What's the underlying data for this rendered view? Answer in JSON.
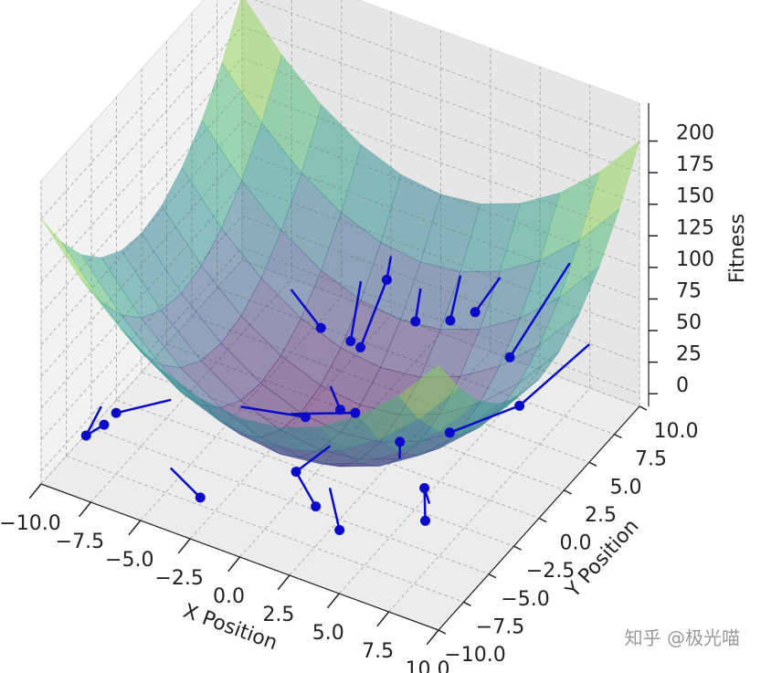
{
  "chart_data": {
    "type": "surface3d",
    "xlabel": "X Position",
    "ylabel": "Y Position",
    "zlabel": "Fitness",
    "xlim": [
      -10,
      10
    ],
    "ylim": [
      -10,
      10
    ],
    "zlim": [
      -10,
      230
    ],
    "xticks": [
      {
        "value": -10,
        "label": "−10.0"
      },
      {
        "value": -7.5,
        "label": "−7.5"
      },
      {
        "value": -5,
        "label": "−5.0"
      },
      {
        "value": -2.5,
        "label": "−2.5"
      },
      {
        "value": 0,
        "label": "0.0"
      },
      {
        "value": 2.5,
        "label": "2.5"
      },
      {
        "value": 5,
        "label": "5.0"
      },
      {
        "value": 7.5,
        "label": "7.5"
      },
      {
        "value": 10,
        "label": "10.0"
      }
    ],
    "yticks": [
      {
        "value": -10,
        "label": "−10.0"
      },
      {
        "value": -7.5,
        "label": "−7.5"
      },
      {
        "value": -5,
        "label": "−5.0"
      },
      {
        "value": -2.5,
        "label": "−2.5"
      },
      {
        "value": 0,
        "label": "0.0"
      },
      {
        "value": 2.5,
        "label": "2.5"
      },
      {
        "value": 5,
        "label": "5.0"
      },
      {
        "value": 7.5,
        "label": "7.5"
      },
      {
        "value": 10,
        "label": "10.0"
      }
    ],
    "zticks": [
      0,
      25,
      50,
      75,
      100,
      125,
      150,
      175,
      200
    ],
    "grid": true,
    "colormap": "viridis",
    "surface": {
      "x": [
        -10,
        -8,
        -6,
        -4,
        -2,
        0,
        2,
        4,
        6,
        8,
        10
      ],
      "y": [
        -10,
        -8,
        -6,
        -4,
        -2,
        0,
        2,
        4,
        6,
        8,
        10
      ],
      "z": [
        [
          200,
          164,
          136,
          116,
          104,
          100,
          104,
          116,
          136,
          164,
          200
        ],
        [
          164,
          128,
          100,
          80,
          68,
          64,
          68,
          80,
          100,
          128,
          164
        ],
        [
          136,
          100,
          72,
          52,
          40,
          36,
          40,
          52,
          72,
          100,
          136
        ],
        [
          116,
          80,
          52,
          32,
          20,
          16,
          20,
          32,
          52,
          80,
          116
        ],
        [
          104,
          68,
          40,
          20,
          8,
          4,
          8,
          20,
          40,
          68,
          104
        ],
        [
          100,
          64,
          36,
          16,
          4,
          0,
          4,
          16,
          36,
          64,
          100
        ],
        [
          104,
          68,
          40,
          20,
          8,
          4,
          8,
          20,
          40,
          68,
          104
        ],
        [
          116,
          80,
          52,
          32,
          20,
          16,
          20,
          32,
          52,
          80,
          116
        ],
        [
          136,
          100,
          72,
          52,
          40,
          36,
          40,
          52,
          72,
          100,
          136
        ],
        [
          164,
          128,
          100,
          80,
          68,
          64,
          68,
          80,
          100,
          128,
          164
        ],
        [
          200,
          164,
          136,
          116,
          104,
          100,
          104,
          116,
          136,
          164,
          200
        ]
      ]
    },
    "trajectory_color": "#0a0ac8",
    "trajectories": [
      {
        "x": [
          -9.5,
          -9,
          -8.6
        ],
        "y": [
          -5,
          -7.5,
          -6.5
        ],
        "z": [
          10,
          12,
          14
        ]
      },
      {
        "x": [
          -7,
          -8.5
        ],
        "y": [
          -3,
          -5.5
        ],
        "z": [
          12,
          15
        ]
      },
      {
        "x": [
          -4,
          -1.5
        ],
        "y": [
          -2,
          -0.5
        ],
        "z": [
          15,
          8
        ]
      },
      {
        "x": [
          -5,
          -3
        ],
        "y": [
          5,
          4
        ],
        "z": [
          40,
          30
        ]
      },
      {
        "x": [
          -2,
          -1
        ],
        "y": [
          6,
          3
        ],
        "z": [
          55,
          40
        ]
      },
      {
        "x": [
          -1.5,
          -1.2,
          -0.5
        ],
        "y": [
          8,
          7,
          3
        ],
        "z": [
          60,
          52,
          38
        ]
      },
      {
        "x": [
          0.5,
          1
        ],
        "y": [
          7,
          5.5
        ],
        "z": [
          55,
          45
        ]
      },
      {
        "x": [
          2,
          2.5
        ],
        "y": [
          8,
          6
        ],
        "z": [
          65,
          50
        ]
      },
      {
        "x": [
          4,
          3.5
        ],
        "y": [
          8,
          6.5
        ],
        "z": [
          75,
          58
        ]
      },
      {
        "x": [
          7,
          6
        ],
        "y": [
          9,
          5
        ],
        "z": [
          95,
          50
        ]
      },
      {
        "x": [
          9,
          7.5,
          5
        ],
        "y": [
          7,
          3,
          1
        ],
        "z": [
          60,
          38,
          20
        ]
      },
      {
        "x": [
          4,
          3
        ],
        "y": [
          -2,
          0
        ],
        "z": [
          20,
          10
        ]
      },
      {
        "x": [
          2,
          3.5
        ],
        "y": [
          -5,
          -7
        ],
        "z": [
          12,
          5
        ]
      },
      {
        "x": [
          6,
          5.5,
          6.3
        ],
        "y": [
          -3,
          -2.5,
          -4
        ],
        "z": [
          5,
          10,
          2
        ]
      },
      {
        "x": [
          0.5,
          0.3,
          1.8
        ],
        "y": [
          -2,
          -5,
          -6
        ],
        "z": [
          10,
          15,
          5
        ]
      },
      {
        "x": [
          -5,
          -3
        ],
        "y": [
          -7,
          -8
        ],
        "z": [
          5,
          2
        ]
      },
      {
        "x": [
          -1,
          0
        ],
        "y": [
          1,
          0
        ],
        "z": [
          22,
          18
        ]
      },
      {
        "x": [
          -2,
          0.5
        ],
        "y": [
          -1,
          0.5
        ],
        "z": [
          12,
          14
        ]
      }
    ],
    "watermark": "知乎 @极光喵"
  }
}
